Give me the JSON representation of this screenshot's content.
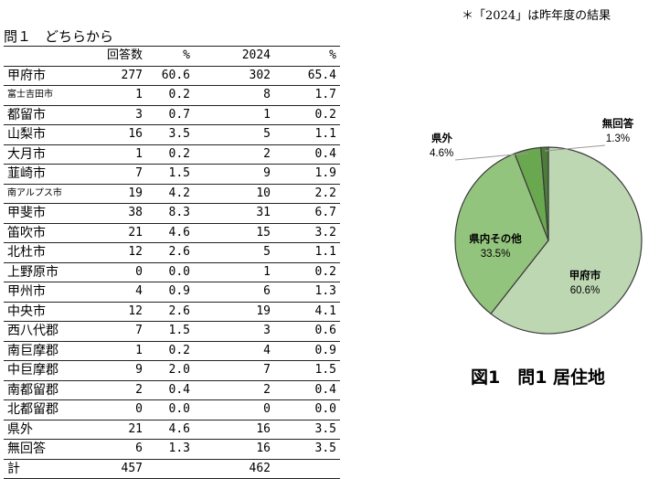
{
  "note": "＊「2024」は昨年度の結果",
  "question_title": "問１　どちらから",
  "table": {
    "headers": [
      "",
      "回答数",
      "%",
      "2024",
      "%"
    ],
    "rows": [
      {
        "name": "甲府市",
        "count": "277",
        "pct": "60.6",
        "count_2024": "302",
        "pct_2024": "65.4"
      },
      {
        "name": "富士吉田市",
        "count": "1",
        "pct": "0.2",
        "count_2024": "8",
        "pct_2024": "1.7"
      },
      {
        "name": "都留市",
        "count": "3",
        "pct": "0.7",
        "count_2024": "1",
        "pct_2024": "0.2"
      },
      {
        "name": "山梨市",
        "count": "16",
        "pct": "3.5",
        "count_2024": "5",
        "pct_2024": "1.1"
      },
      {
        "name": "大月市",
        "count": "1",
        "pct": "0.2",
        "count_2024": "2",
        "pct_2024": "0.4"
      },
      {
        "name": "韮崎市",
        "count": "7",
        "pct": "1.5",
        "count_2024": "9",
        "pct_2024": "1.9"
      },
      {
        "name": "南アルプス市",
        "count": "19",
        "pct": "4.2",
        "count_2024": "10",
        "pct_2024": "2.2"
      },
      {
        "name": "甲斐市",
        "count": "38",
        "pct": "8.3",
        "count_2024": "31",
        "pct_2024": "6.7"
      },
      {
        "name": "笛吹市",
        "count": "21",
        "pct": "4.6",
        "count_2024": "15",
        "pct_2024": "3.2"
      },
      {
        "name": "北杜市",
        "count": "12",
        "pct": "2.6",
        "count_2024": "5",
        "pct_2024": "1.1"
      },
      {
        "name": "上野原市",
        "count": "0",
        "pct": "0.0",
        "count_2024": "1",
        "pct_2024": "0.2"
      },
      {
        "name": "甲州市",
        "count": "4",
        "pct": "0.9",
        "count_2024": "6",
        "pct_2024": "1.3"
      },
      {
        "name": "中央市",
        "count": "12",
        "pct": "2.6",
        "count_2024": "19",
        "pct_2024": "4.1"
      },
      {
        "name": "西八代郡",
        "count": "7",
        "pct": "1.5",
        "count_2024": "3",
        "pct_2024": "0.6"
      },
      {
        "name": "南巨摩郡",
        "count": "1",
        "pct": "0.2",
        "count_2024": "4",
        "pct_2024": "0.9"
      },
      {
        "name": "中巨摩郡",
        "count": "9",
        "pct": "2.0",
        "count_2024": "7",
        "pct_2024": "1.5"
      },
      {
        "name": "南都留郡",
        "count": "2",
        "pct": "0.4",
        "count_2024": "2",
        "pct_2024": "0.4"
      },
      {
        "name": "北都留郡",
        "count": "0",
        "pct": "0.0",
        "count_2024": "0",
        "pct_2024": "0.0"
      },
      {
        "name": "県外",
        "count": "21",
        "pct": "4.6",
        "count_2024": "16",
        "pct_2024": "3.5"
      },
      {
        "name": "無回答",
        "count": "6",
        "pct": "1.3",
        "count_2024": "16",
        "pct_2024": "3.5"
      }
    ],
    "total": {
      "name": "計",
      "count": "457",
      "pct": "",
      "count_2024": "462",
      "pct_2024": ""
    }
  },
  "chart_data": {
    "type": "pie",
    "title": "図1　問1 居住地",
    "slices": [
      {
        "label": "甲府市",
        "value": 60.6,
        "value_label": "60.6%",
        "color": "#bdd7b3"
      },
      {
        "label": "県内その他",
        "value": 33.5,
        "value_label": "33.5%",
        "color": "#93c47d"
      },
      {
        "label": "県外",
        "value": 4.6,
        "value_label": "4.6%",
        "color": "#6aa84f"
      },
      {
        "label": "無回答",
        "value": 1.3,
        "value_label": "1.3%",
        "color": "#4d7c3a"
      }
    ]
  }
}
